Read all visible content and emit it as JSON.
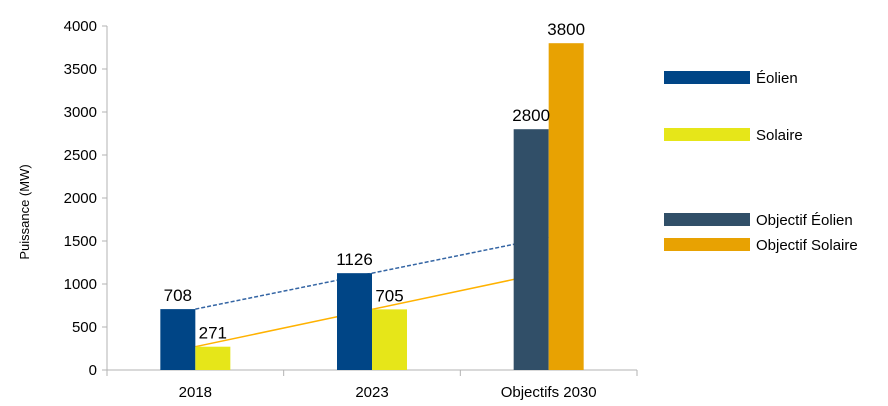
{
  "chart_data": {
    "type": "bar",
    "categories": [
      "2018",
      "2023",
      "Objectifs 2030"
    ],
    "ylabel": "Puissance (MW)",
    "xlabel": "",
    "ylim": [
      0,
      4000
    ],
    "yticks": [
      0,
      500,
      1000,
      1500,
      2000,
      2500,
      3000,
      3500,
      4000
    ],
    "grid": false,
    "legend_position": "right",
    "series": [
      {
        "name": "Éolien",
        "values": [
          708,
          1126,
          null
        ],
        "color": "#004586"
      },
      {
        "name": "Solaire",
        "values": [
          271,
          705,
          null
        ],
        "color": "#e6e619"
      },
      {
        "name": "Objectif Éolien",
        "values": [
          null,
          null,
          2800
        ],
        "color": "#314f68"
      },
      {
        "name": "Objectif Solaire",
        "values": [
          null,
          null,
          3800
        ],
        "color": "#e8a202"
      }
    ],
    "trendlines": [
      {
        "series": "Éolien",
        "color": "#3465a4",
        "style": "dashed"
      },
      {
        "series": "Solaire",
        "color": "#ffb200",
        "style": "solid"
      }
    ]
  }
}
